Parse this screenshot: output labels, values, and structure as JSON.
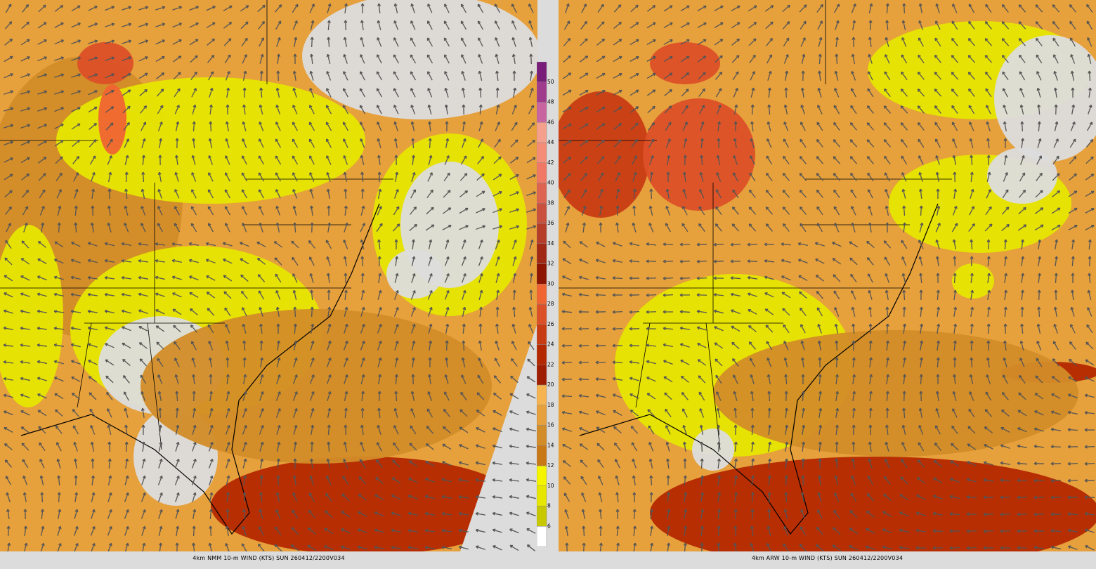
{
  "panels": [
    {
      "caption": "4km NMM 10-m WIND (KTS) SUN 260412/2200V034"
    },
    {
      "caption": "4km ARW 10-m WIND (KTS) SUN 260412/2200V034"
    }
  ],
  "legend": {
    "labels": [
      6,
      8,
      10,
      12,
      14,
      16,
      18,
      20,
      22,
      24,
      26,
      28,
      30,
      32,
      34,
      36,
      38,
      40,
      42,
      44,
      46,
      48,
      50
    ],
    "colors": [
      "#ffffff",
      "#c8c800",
      "#e6e600",
      "#f5f500",
      "#c87814",
      "#d28c28",
      "#e6a03c",
      "#f5b450",
      "#a01e00",
      "#b42800",
      "#c83c14",
      "#dc5028",
      "#f06432",
      "#8c1400",
      "#a02814",
      "#b43c28",
      "#c8503c",
      "#dc6450",
      "#f07864",
      "#f58c78",
      "#f5a08c",
      "#c864a0",
      "#a03c8c",
      "#781e78"
    ]
  }
}
